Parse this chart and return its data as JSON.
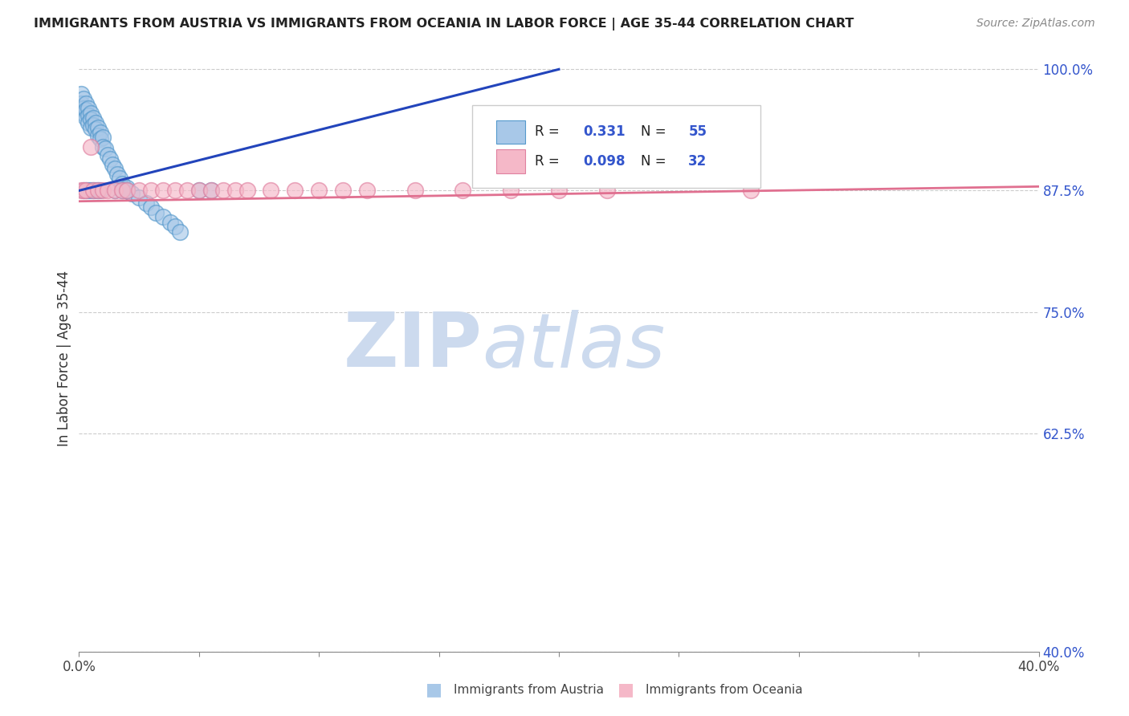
{
  "title": "IMMIGRANTS FROM AUSTRIA VS IMMIGRANTS FROM OCEANIA IN LABOR FORCE | AGE 35-44 CORRELATION CHART",
  "source": "Source: ZipAtlas.com",
  "ylabel": "In Labor Force | Age 35-44",
  "xlim": [
    0.0,
    0.4
  ],
  "ylim": [
    0.4,
    1.005
  ],
  "xticks": [
    0.0,
    0.05,
    0.1,
    0.15,
    0.2,
    0.25,
    0.3,
    0.35,
    0.4
  ],
  "yticks": [
    0.4,
    0.625,
    0.75,
    0.875,
    1.0
  ],
  "ytick_labels": [
    "40.0%",
    "62.5%",
    "75.0%",
    "87.5%",
    "100.0%"
  ],
  "xtick_labels": [
    "0.0%",
    "",
    "",
    "",
    "",
    "",
    "",
    "",
    "40.0%"
  ],
  "austria_color": "#a8c8e8",
  "austria_edge": "#5599cc",
  "oceania_color": "#f5b8c8",
  "oceania_edge": "#e080a0",
  "trend_blue": "#2244bb",
  "trend_pink": "#e07090",
  "watermark_zip": "ZIP",
  "watermark_atlas": "atlas",
  "watermark_color_zip": "#c8d8ee",
  "watermark_color_atlas": "#c8d8ee",
  "background": "#ffffff",
  "austria_x": [
    0.002,
    0.003,
    0.003,
    0.004,
    0.004,
    0.005,
    0.005,
    0.005,
    0.005,
    0.006,
    0.006,
    0.007,
    0.007,
    0.007,
    0.008,
    0.008,
    0.009,
    0.009,
    0.01,
    0.01,
    0.01,
    0.011,
    0.011,
    0.012,
    0.012,
    0.013,
    0.013,
    0.014,
    0.015,
    0.015,
    0.016,
    0.017,
    0.017,
    0.018,
    0.019,
    0.02,
    0.021,
    0.022,
    0.023,
    0.025,
    0.026,
    0.027,
    0.028,
    0.03,
    0.032,
    0.033,
    0.035,
    0.038,
    0.04,
    0.042,
    0.045,
    0.048,
    0.05,
    0.055,
    0.06
  ],
  "austria_y": [
    0.955,
    0.96,
    0.965,
    0.975,
    0.97,
    0.96,
    0.955,
    0.95,
    0.958,
    0.952,
    0.948,
    0.945,
    0.94,
    0.938,
    0.935,
    0.932,
    0.928,
    0.925,
    0.92,
    0.915,
    0.875,
    0.91,
    0.905,
    0.9,
    0.895,
    0.892,
    0.888,
    0.885,
    0.882,
    0.878,
    0.875,
    0.872,
    0.868,
    0.865,
    0.862,
    0.858,
    0.855,
    0.852,
    0.848,
    0.845,
    0.842,
    0.838,
    0.835,
    0.832,
    0.828,
    0.875,
    0.875,
    0.875,
    0.875,
    0.875,
    0.875,
    0.875,
    0.875,
    0.875,
    0.875
  ],
  "oceania_x": [
    0.002,
    0.003,
    0.004,
    0.005,
    0.006,
    0.007,
    0.008,
    0.009,
    0.01,
    0.011,
    0.012,
    0.013,
    0.015,
    0.017,
    0.02,
    0.025,
    0.03,
    0.035,
    0.04,
    0.045,
    0.05,
    0.06,
    0.07,
    0.08,
    0.09,
    0.1,
    0.11,
    0.12,
    0.15,
    0.18,
    0.22,
    0.28
  ],
  "oceania_y": [
    0.875,
    0.875,
    0.875,
    0.875,
    0.875,
    0.875,
    0.875,
    0.875,
    0.875,
    0.875,
    0.875,
    0.875,
    0.875,
    0.875,
    0.875,
    0.875,
    0.875,
    0.875,
    0.875,
    0.875,
    0.875,
    0.875,
    0.875,
    0.875,
    0.875,
    0.875,
    0.875,
    0.875,
    0.875,
    0.875,
    0.875,
    0.875
  ]
}
